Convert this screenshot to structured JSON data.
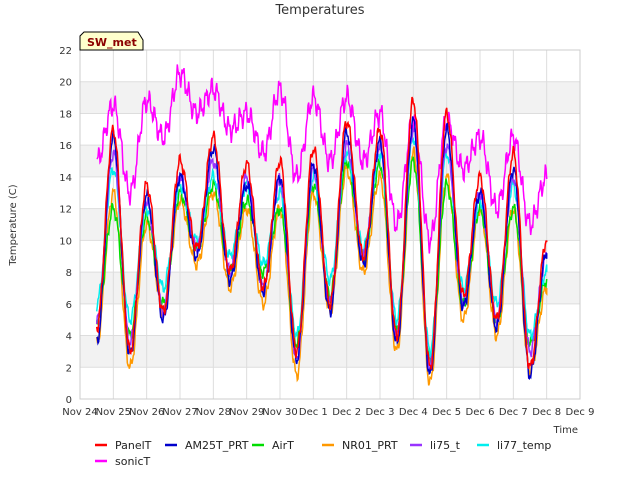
{
  "chart_data": {
    "type": "line",
    "title": "Temperatures",
    "xlabel": "Time",
    "ylabel": "Temperature (C)",
    "site_label": "SW_met",
    "ylim": [
      0,
      22
    ],
    "yticks": [
      0,
      2,
      4,
      6,
      8,
      10,
      12,
      14,
      16,
      18,
      20,
      22
    ],
    "xlim": [
      0,
      15
    ],
    "xtick_labels": [
      "Nov 24",
      "Nov 25",
      "Nov 26",
      "Nov 27",
      "Nov 28",
      "Nov 29",
      "Nov 30",
      "Dec 1",
      "Dec 2",
      "Dec 3",
      "Dec 4",
      "Dec 5",
      "Dec 6",
      "Dec 7",
      "Dec 8",
      "Dec 9"
    ],
    "grid": true,
    "legend_position": "bottom",
    "days": {
      "x": [
        0.5,
        1.0,
        1.5,
        2.0,
        2.5,
        3.0,
        3.5,
        4.0,
        4.5,
        5.0,
        5.5,
        6.0,
        6.5,
        7.0,
        7.5,
        8.0,
        8.5,
        9.0,
        9.5,
        10.0,
        10.5,
        11.0,
        11.5,
        12.0,
        12.5,
        13.0,
        13.5,
        14.0
      ]
    },
    "series": [
      {
        "name": "PanelT",
        "color": "#ff0000",
        "y": [
          4.5,
          17.0,
          3.0,
          13.5,
          5.5,
          15.0,
          9.5,
          16.5,
          8.0,
          14.8,
          7.0,
          15.0,
          3.0,
          15.8,
          6.0,
          17.5,
          9.0,
          17.0,
          4.0,
          18.8,
          2.0,
          18.0,
          6.5,
          14.0,
          5.0,
          15.5,
          2.0,
          10.0
        ]
      },
      {
        "name": "AM25T_PRT",
        "color": "#0000cc",
        "y": [
          3.5,
          16.5,
          2.8,
          12.8,
          5.0,
          14.0,
          9.0,
          15.8,
          7.5,
          13.5,
          6.8,
          14.0,
          2.5,
          14.8,
          5.5,
          16.8,
          8.5,
          16.2,
          3.5,
          17.5,
          1.5,
          17.0,
          5.8,
          13.0,
          4.5,
          14.5,
          1.5,
          9.2
        ]
      },
      {
        "name": "AirT",
        "color": "#00dd00",
        "y": [
          5.0,
          12.0,
          4.0,
          11.5,
          6.0,
          13.0,
          9.5,
          13.5,
          8.0,
          12.5,
          8.0,
          12.0,
          3.5,
          13.5,
          6.5,
          15.0,
          9.0,
          14.8,
          4.5,
          15.0,
          2.5,
          13.5,
          6.0,
          12.0,
          5.0,
          12.0,
          3.5,
          7.5
        ]
      },
      {
        "name": "NR01_PRT",
        "color": "#ff9900",
        "y": [
          3.5,
          13.0,
          2.0,
          11.0,
          5.5,
          12.5,
          8.5,
          13.0,
          7.0,
          12.0,
          6.0,
          12.0,
          1.5,
          13.0,
          5.5,
          14.5,
          8.0,
          14.0,
          3.0,
          15.5,
          1.0,
          14.0,
          5.0,
          12.0,
          4.0,
          12.0,
          1.8,
          7.0
        ]
      },
      {
        "name": "li75_t",
        "color": "#9933ff",
        "y": [
          4.8,
          15.5,
          3.5,
          12.5,
          5.5,
          14.0,
          9.5,
          15.0,
          8.0,
          14.0,
          7.0,
          13.8,
          2.5,
          14.5,
          6.0,
          16.0,
          9.0,
          16.0,
          4.0,
          17.0,
          2.0,
          16.0,
          6.0,
          13.0,
          5.0,
          14.0,
          3.0,
          9.0
        ]
      },
      {
        "name": "li77_temp",
        "color": "#00eeee",
        "y": [
          6.0,
          14.5,
          5.0,
          12.0,
          7.0,
          13.5,
          10.0,
          14.0,
          9.0,
          13.5,
          8.5,
          13.0,
          4.0,
          14.0,
          7.5,
          15.5,
          9.5,
          15.5,
          5.0,
          16.5,
          3.0,
          15.5,
          7.0,
          12.5,
          6.0,
          13.5,
          4.0,
          8.0
        ]
      },
      {
        "name": "sonicT",
        "color": "#ff00ff",
        "y": [
          15.0,
          18.5,
          13.0,
          18.8,
          16.5,
          20.5,
          18.0,
          19.5,
          17.0,
          18.0,
          15.5,
          19.5,
          14.0,
          19.0,
          15.0,
          19.0,
          15.0,
          18.0,
          11.0,
          17.5,
          10.0,
          17.5,
          14.5,
          16.5,
          12.0,
          16.5,
          11.0,
          14.0
        ]
      }
    ]
  }
}
